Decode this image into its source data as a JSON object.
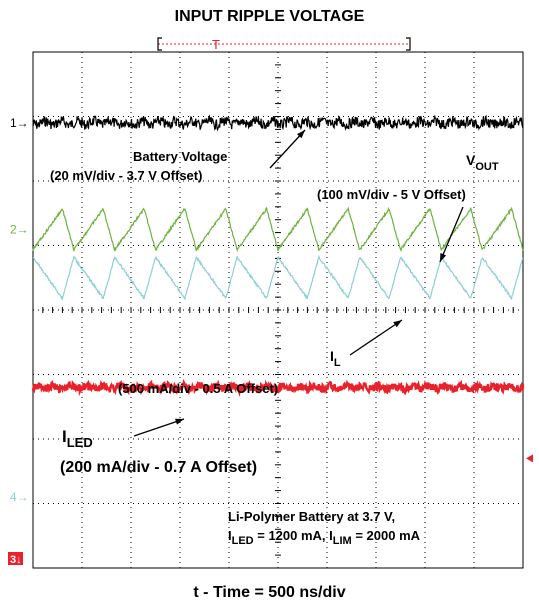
{
  "chart_data": {
    "type": "line",
    "title": "INPUT RIPPLE VOLTAGE",
    "xlabel": "t - Time = 500 ns/div",
    "ylabel": "",
    "grid": true,
    "x_divisions": 10,
    "y_divisions": 8,
    "channels": [
      {
        "marker": "1",
        "color": "#000000",
        "baseline_div": 1.1,
        "waveform": "noise",
        "ripple_div": 0.08,
        "periods": 0
      },
      {
        "marker": "2",
        "color": "#6cb33e",
        "baseline_div": 2.75,
        "waveform": "triangle",
        "ripple_div": 0.32,
        "periods": 12
      },
      {
        "marker": "",
        "color": "#8ecfd4",
        "baseline_div": 3.5,
        "waveform": "triangle-inverted",
        "ripple_div": 0.32,
        "periods": 12
      },
      {
        "marker": "3",
        "color": "#e8212b",
        "baseline_div": 5.2,
        "waveform": "noise",
        "ripple_div": 0.06,
        "periods": 0
      },
      {
        "marker": "4",
        "color": "#8ecfd4",
        "baseline_div": 6.9,
        "waveform": "none",
        "ripple_div": 0,
        "periods": 0
      }
    ],
    "annotations": {
      "battery_voltage": "Battery Voltage",
      "battery_scale": "(20 mV/div - 3.7 V Offset)",
      "vout_main": "V",
      "vout_sub": "OUT",
      "vout_scale": "(100 mV/div - 5 V Offset)",
      "il_main": "I",
      "il_sub": "L",
      "il_scale": "(500 mA/div - 0.5 A Offset)",
      "iled_main": "I",
      "iled_sub": "LED",
      "iled_scale": "(200 mA/div - 0.7 A Offset)",
      "cond_line1": "Li-Polymer Battery at 3.7 V,",
      "cond_i1": "I",
      "cond_i1_sub": "LED",
      "cond_mid": " = 1200 mA, I",
      "cond_i2_sub": "LIM",
      "cond_end": " = 2000 mA"
    },
    "trigger_label": "T",
    "colors": {
      "channel1": "#000000",
      "channel2": "#6cb33e",
      "channel_il": "#8ecfd4",
      "channel3": "#e8212b",
      "trigger": "#e8212b"
    }
  }
}
